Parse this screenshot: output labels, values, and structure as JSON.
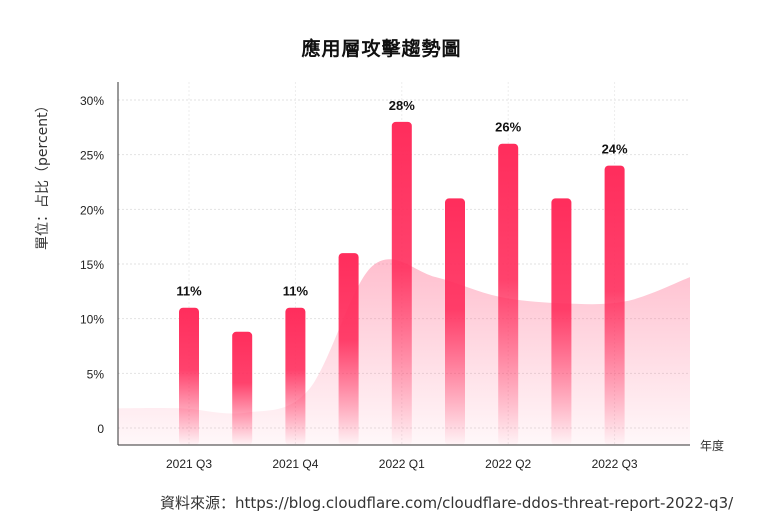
{
  "chart_data": {
    "type": "bar",
    "title": "應用層攻擊趨勢圖",
    "ylabel": "單位：占比（percent）",
    "xlabel": "年度",
    "ylim": [
      0,
      30
    ],
    "y_ticks": [
      "0",
      "5%",
      "10%",
      "15%",
      "20%",
      "25%",
      "30%"
    ],
    "grid": true,
    "categories": [
      "2021 Q3",
      "",
      "2021 Q4",
      "",
      "2022 Q1",
      "",
      "2022 Q2",
      "",
      "2022 Q3"
    ],
    "values": [
      11,
      8.8,
      11,
      16,
      28,
      21,
      26,
      21,
      24
    ],
    "data_labels": [
      "11%",
      "",
      "11%",
      "",
      "28%",
      "",
      "26%",
      "",
      "24%"
    ],
    "area_series": {
      "x": [
        0,
        1,
        2,
        3,
        4,
        5,
        6,
        7,
        8,
        9
      ],
      "values": [
        1.8,
        1.8,
        1.4,
        3.5,
        14.8,
        13.8,
        12,
        11.4,
        11.6,
        13.8
      ]
    },
    "bar_color": "#ff2d5c"
  },
  "source": "資料來源：https://blog.cloudflare.com/cloudflare-ddos-threat-report-2022-q3/"
}
